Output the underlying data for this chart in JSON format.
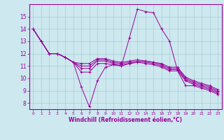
{
  "xlabel": "Windchill (Refroidissement éolien,°C)",
  "bg_color": "#cde8ef",
  "line_color": "#990099",
  "grid_color": "#a8cdd4",
  "x_hours": [
    0,
    1,
    2,
    3,
    4,
    5,
    6,
    7,
    8,
    9,
    10,
    11,
    12,
    13,
    14,
    15,
    16,
    17,
    18,
    19,
    20,
    21,
    22,
    23
  ],
  "lines": [
    [
      14.0,
      13.0,
      12.0,
      12.0,
      11.7,
      11.3,
      9.3,
      7.7,
      9.8,
      10.9,
      11.1,
      11.0,
      13.3,
      15.6,
      15.4,
      15.3,
      14.0,
      13.0,
      10.6,
      9.4,
      9.4,
      9.2,
      9.0,
      8.7
    ],
    [
      14.0,
      13.0,
      12.0,
      12.0,
      11.7,
      11.3,
      10.5,
      10.5,
      11.2,
      11.2,
      11.1,
      11.0,
      11.2,
      11.3,
      11.2,
      11.1,
      10.9,
      10.6,
      10.6,
      9.8,
      9.5,
      9.3,
      9.1,
      8.8
    ],
    [
      14.0,
      13.0,
      12.0,
      12.0,
      11.7,
      11.3,
      10.8,
      10.8,
      11.4,
      11.4,
      11.2,
      11.1,
      11.2,
      11.3,
      11.3,
      11.2,
      11.0,
      10.7,
      10.7,
      9.9,
      9.6,
      9.4,
      9.2,
      8.9
    ],
    [
      14.0,
      13.0,
      12.0,
      12.0,
      11.7,
      11.3,
      11.0,
      11.0,
      11.5,
      11.5,
      11.3,
      11.2,
      11.3,
      11.4,
      11.4,
      11.3,
      11.1,
      10.8,
      10.8,
      10.0,
      9.7,
      9.5,
      9.3,
      9.0
    ],
    [
      14.0,
      13.0,
      12.0,
      12.0,
      11.7,
      11.3,
      11.2,
      11.2,
      11.6,
      11.6,
      11.4,
      11.3,
      11.4,
      11.5,
      11.4,
      11.3,
      11.2,
      10.9,
      10.9,
      10.1,
      9.8,
      9.6,
      9.4,
      9.1
    ]
  ],
  "xlim": [
    -0.5,
    23.5
  ],
  "ylim": [
    7.5,
    16.0
  ],
  "yticks": [
    8,
    9,
    10,
    11,
    12,
    13,
    14,
    15
  ],
  "xticks": [
    0,
    1,
    2,
    3,
    4,
    5,
    6,
    7,
    8,
    9,
    10,
    11,
    12,
    13,
    14,
    15,
    16,
    17,
    18,
    19,
    20,
    21,
    22,
    23
  ],
  "xtick_labels": [
    "0",
    "1",
    "2",
    "3",
    "4",
    "5",
    "6",
    "7",
    "8",
    "9",
    "10",
    "11",
    "12",
    "13",
    "14",
    "15",
    "16",
    "17",
    "18",
    "19",
    "20",
    "21",
    "22",
    "23"
  ]
}
